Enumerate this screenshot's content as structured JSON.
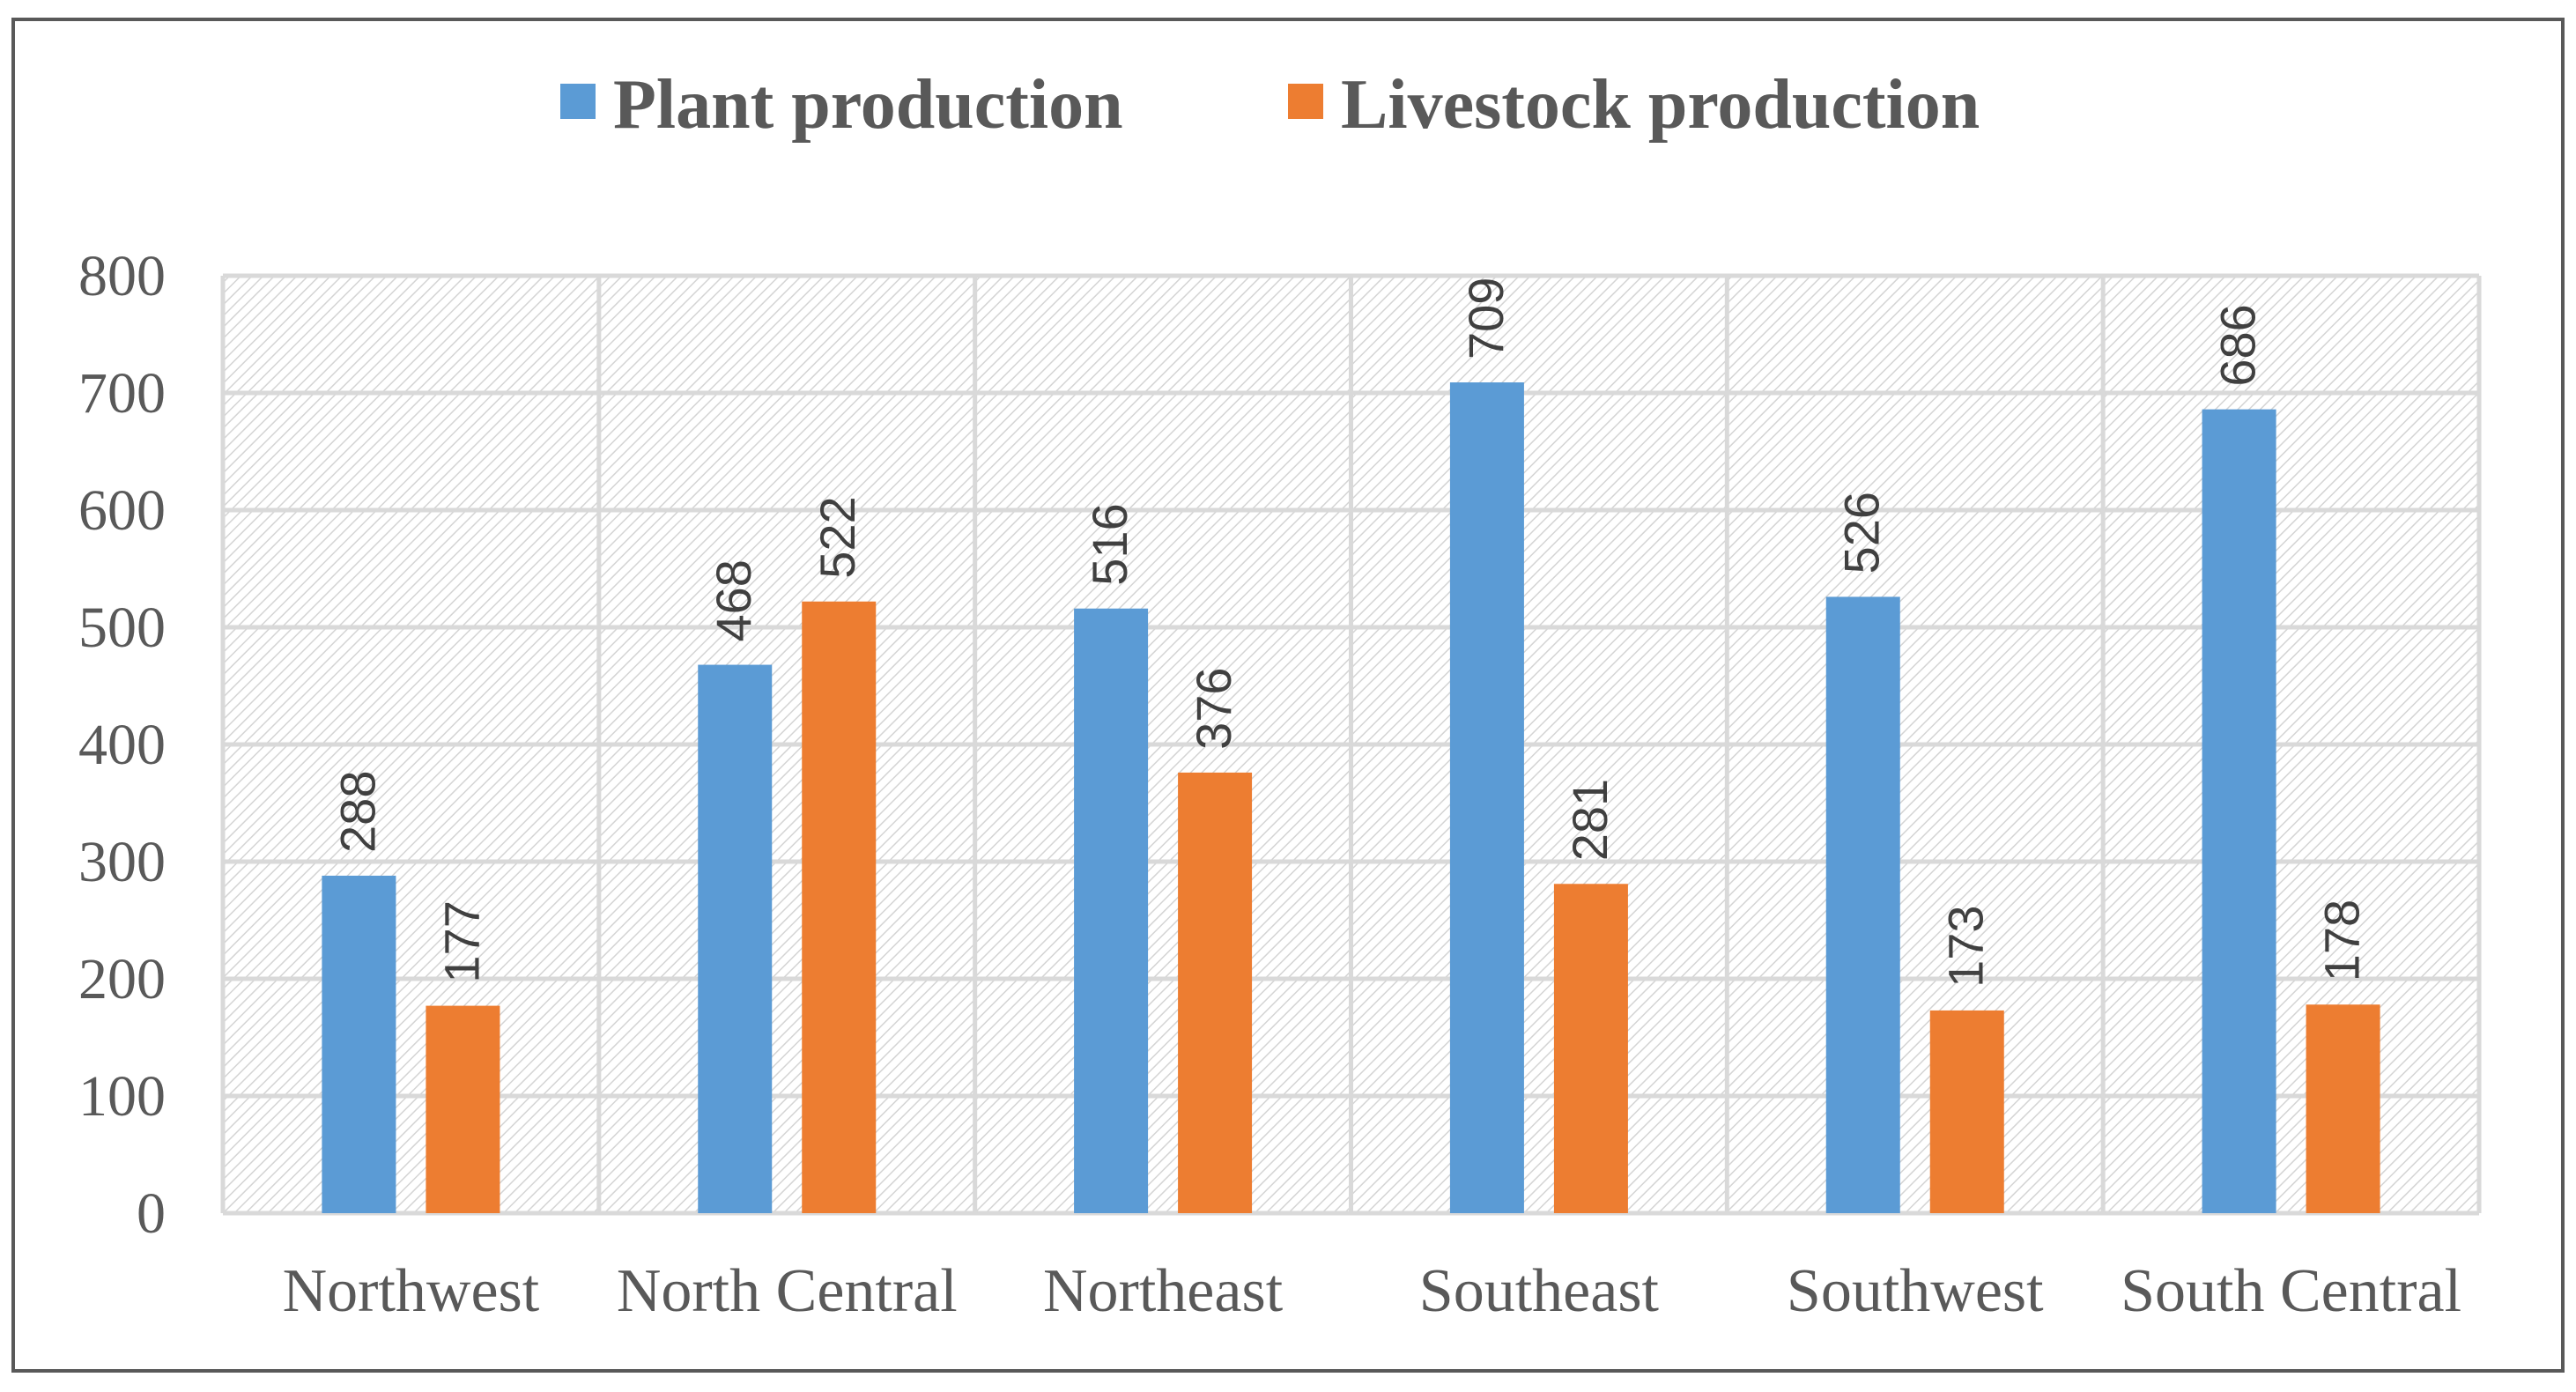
{
  "chart_data": {
    "type": "bar",
    "title": "",
    "xlabel": "",
    "ylabel": "",
    "categories": [
      "Northwest",
      "North Central",
      "Northeast",
      "Southeast",
      "Southwest",
      "South Central"
    ],
    "series": [
      {
        "name": "Plant production",
        "color": "#5B9BD5",
        "values": [
          288,
          468,
          516,
          709,
          526,
          686
        ]
      },
      {
        "name": "Livestock production",
        "color": "#ED7D31",
        "values": [
          177,
          522,
          376,
          281,
          173,
          178
        ]
      }
    ],
    "ylim": [
      0,
      800
    ],
    "yticks": [
      0,
      100,
      200,
      300,
      400,
      500,
      600,
      700,
      800
    ],
    "grid": true,
    "legend_position": "top-center",
    "data_labels": true,
    "data_label_rotation": "vertical"
  }
}
